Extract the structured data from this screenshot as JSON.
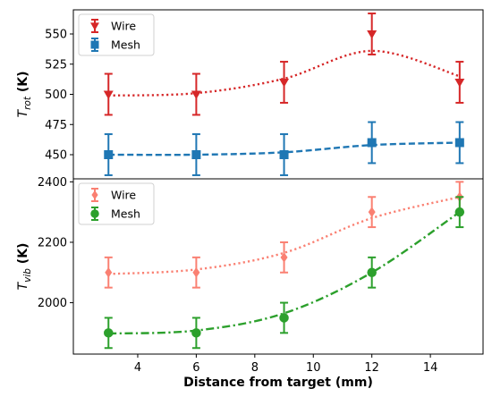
{
  "chart_data": [
    {
      "type": "line",
      "ylabel": "T",
      "ylabel_sub": "rot",
      "ylabel_unit": "(K)",
      "ylim": [
        430,
        570
      ],
      "yticks": [
        450,
        475,
        500,
        525,
        550
      ],
      "legend_position": "top-left",
      "series": [
        {
          "name": "Wire",
          "marker": "triangle-down",
          "line_style": "dotted",
          "color": "#d62728",
          "x": [
            3,
            6,
            9,
            12,
            15
          ],
          "y": [
            500,
            500,
            510,
            550,
            510
          ],
          "yerr": [
            17,
            17,
            17,
            17,
            17
          ],
          "fit_y": [
            499,
            501,
            513,
            536,
            515
          ]
        },
        {
          "name": "Mesh",
          "marker": "square",
          "line_style": "dashed",
          "color": "#1f77b4",
          "x": [
            3,
            6,
            9,
            12,
            15
          ],
          "y": [
            450,
            450,
            450,
            460,
            460
          ],
          "yerr": [
            17,
            17,
            17,
            17,
            17
          ],
          "fit_y": [
            450,
            450,
            452,
            458,
            460
          ]
        }
      ]
    },
    {
      "type": "line",
      "ylabel": "T",
      "ylabel_sub": "vib",
      "ylabel_unit": "(K)",
      "ylim": [
        1830,
        2410
      ],
      "yticks": [
        2000,
        2200,
        2400
      ],
      "legend_position": "top-left",
      "series": [
        {
          "name": "Wire",
          "marker": "diamond",
          "line_style": "dotted",
          "color": "#fa8072",
          "x": [
            3,
            6,
            9,
            12,
            15
          ],
          "y": [
            2100,
            2100,
            2150,
            2300,
            2350
          ],
          "yerr": [
            50,
            50,
            50,
            50,
            50
          ],
          "fit_y": [
            2095,
            2110,
            2165,
            2280,
            2350
          ]
        },
        {
          "name": "Mesh",
          "marker": "circle",
          "line_style": "dashdot",
          "color": "#2ca02c",
          "x": [
            3,
            6,
            9,
            12,
            15
          ],
          "y": [
            1900,
            1900,
            1950,
            2100,
            2300
          ],
          "yerr": [
            50,
            50,
            50,
            50,
            50
          ],
          "fit_y": [
            1898,
            1908,
            1965,
            2100,
            2300
          ]
        }
      ]
    }
  ],
  "xaxis": {
    "label": "Distance from target (mm)",
    "xlim": [
      1.8,
      15.8
    ],
    "xticks": [
      4,
      6,
      8,
      10,
      12,
      14
    ]
  }
}
